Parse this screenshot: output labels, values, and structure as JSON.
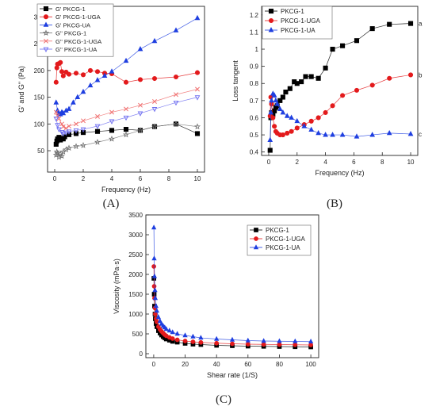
{
  "panels": [
    "(A)",
    "(B)",
    "(C)"
  ],
  "chart_data": [
    {
      "type": "line",
      "xlabel": "Frequency (Hz)",
      "ylabel": "G' and G'' (Pa)",
      "xlim": [
        -0.5,
        10.5
      ],
      "ylim": [
        10,
        320
      ],
      "xticks": [
        0,
        2,
        4,
        6,
        8,
        10
      ],
      "yticks": [
        50,
        100,
        150,
        200,
        250,
        300
      ],
      "legend_position": "top-left",
      "series": [
        {
          "name": "G' PKCG-1",
          "color": "#000000",
          "marker": "square",
          "filled": true,
          "x": [
            0.1,
            0.15,
            0.2,
            0.3,
            0.4,
            0.5,
            0.6,
            0.7,
            1.0,
            1.5,
            2.0,
            3.0,
            4.0,
            5.0,
            6.0,
            7.0,
            8.5,
            10.0
          ],
          "y": [
            62,
            68,
            72,
            75,
            70,
            73,
            72,
            76,
            80,
            82,
            84,
            86,
            88,
            90,
            88,
            95,
            100,
            82
          ]
        },
        {
          "name": "G' PKCG-1-UGA",
          "color": "#e31a1c",
          "marker": "circle",
          "filled": true,
          "x": [
            0.1,
            0.15,
            0.2,
            0.3,
            0.4,
            0.5,
            0.6,
            0.8,
            1.0,
            1.5,
            2.0,
            2.5,
            3.0,
            3.5,
            4.0,
            5.0,
            6.0,
            7.0,
            8.5,
            10.0
          ],
          "y": [
            178,
            205,
            212,
            213,
            215,
            198,
            190,
            197,
            193,
            195,
            192,
            200,
            198,
            195,
            194,
            178,
            183,
            185,
            188,
            196
          ]
        },
        {
          "name": "G' PKCG-UA",
          "color": "#1f3fe0",
          "marker": "triangle-up",
          "filled": true,
          "x": [
            0.1,
            0.2,
            0.3,
            0.4,
            0.5,
            0.6,
            0.8,
            1.0,
            1.3,
            1.6,
            2.0,
            2.5,
            3.0,
            3.5,
            4.0,
            5.0,
            6.0,
            7.0,
            8.5,
            10.0
          ],
          "y": [
            140,
            125,
            120,
            118,
            122,
            120,
            125,
            128,
            140,
            150,
            160,
            172,
            182,
            190,
            198,
            218,
            240,
            255,
            275,
            298
          ]
        },
        {
          "name": "G'' PKCG-1",
          "color": "#6e6e6e",
          "marker": "star",
          "filled": false,
          "x": [
            0.1,
            0.15,
            0.2,
            0.3,
            0.4,
            0.5,
            0.6,
            0.8,
            1.0,
            1.5,
            2.0,
            3.0,
            4.0,
            5.0,
            6.0,
            7.0,
            8.5,
            10.0
          ],
          "y": [
            42,
            48,
            45,
            38,
            44,
            40,
            48,
            52,
            55,
            58,
            60,
            66,
            72,
            80,
            88,
            95,
            100,
            95
          ]
        },
        {
          "name": "G'' PKCG-1-UGA",
          "color": "#f07070",
          "marker": "x",
          "filled": false,
          "x": [
            0.1,
            0.2,
            0.3,
            0.5,
            0.6,
            0.8,
            1.0,
            1.5,
            2.0,
            3.0,
            4.0,
            5.0,
            6.0,
            7.0,
            8.5,
            10.0
          ],
          "y": [
            122,
            115,
            110,
            100,
            95,
            92,
            96,
            100,
            106,
            114,
            122,
            128,
            135,
            142,
            155,
            165
          ]
        },
        {
          "name": "G'' PKCG-1-UA",
          "color": "#6b6bf0",
          "marker": "triangle-down",
          "filled": false,
          "x": [
            0.1,
            0.2,
            0.3,
            0.5,
            0.6,
            0.8,
            1.0,
            1.5,
            2.0,
            3.0,
            4.0,
            5.0,
            6.0,
            7.0,
            8.5,
            10.0
          ],
          "y": [
            110,
            98,
            90,
            85,
            82,
            84,
            86,
            88,
            90,
            96,
            105,
            112,
            120,
            128,
            140,
            150
          ]
        }
      ]
    },
    {
      "type": "line",
      "xlabel": "Frequency (Hz)",
      "ylabel": "Loss tangent",
      "xlim": [
        -0.5,
        10.5
      ],
      "ylim": [
        0.38,
        1.25
      ],
      "xticks": [
        0,
        2,
        4,
        6,
        8,
        10
      ],
      "yticks": [
        0.4,
        0.5,
        0.6,
        0.7,
        0.8,
        0.9,
        1.0,
        1.1,
        1.2
      ],
      "legend_position": "top-left",
      "annotations": [
        "a",
        "b",
        "c"
      ],
      "series": [
        {
          "name": "PKCG-1",
          "color": "#000000",
          "marker": "square",
          "filled": true,
          "end_label": "a",
          "x": [
            0.1,
            0.15,
            0.2,
            0.3,
            0.4,
            0.5,
            0.6,
            0.8,
            1.0,
            1.2,
            1.5,
            1.8,
            2.0,
            2.3,
            2.6,
            3.0,
            3.5,
            4.0,
            4.5,
            5.2,
            6.2,
            7.3,
            8.5,
            10.0
          ],
          "y": [
            0.41,
            0.6,
            0.63,
            0.62,
            0.64,
            0.66,
            0.67,
            0.7,
            0.72,
            0.75,
            0.77,
            0.81,
            0.8,
            0.81,
            0.84,
            0.84,
            0.83,
            0.89,
            1.0,
            1.02,
            1.05,
            1.12,
            1.145,
            1.15
          ]
        },
        {
          "name": "PKCG-1-UGA",
          "color": "#e31a1c",
          "marker": "circle",
          "filled": true,
          "end_label": "b",
          "x": [
            0.1,
            0.15,
            0.2,
            0.3,
            0.4,
            0.5,
            0.6,
            0.8,
            1.0,
            1.3,
            1.6,
            2.0,
            2.5,
            3.0,
            3.5,
            4.0,
            4.5,
            5.2,
            6.2,
            7.3,
            8.5,
            10.0
          ],
          "y": [
            0.61,
            0.72,
            0.68,
            0.6,
            0.55,
            0.52,
            0.51,
            0.5,
            0.5,
            0.51,
            0.52,
            0.54,
            0.56,
            0.58,
            0.6,
            0.63,
            0.67,
            0.73,
            0.76,
            0.79,
            0.83,
            0.85
          ]
        },
        {
          "name": "PKCG-1-UA",
          "color": "#1f3fe0",
          "marker": "triangle-up",
          "filled": true,
          "end_label": "c",
          "x": [
            0.1,
            0.15,
            0.2,
            0.3,
            0.4,
            0.5,
            0.6,
            0.8,
            1.0,
            1.3,
            1.6,
            2.0,
            2.5,
            3.0,
            3.5,
            4.0,
            4.5,
            5.2,
            6.2,
            7.3,
            8.5,
            10.0
          ],
          "y": [
            0.47,
            0.63,
            0.7,
            0.74,
            0.73,
            0.7,
            0.68,
            0.65,
            0.63,
            0.61,
            0.6,
            0.58,
            0.55,
            0.53,
            0.51,
            0.5,
            0.5,
            0.5,
            0.49,
            0.5,
            0.51,
            0.505
          ]
        }
      ]
    },
    {
      "type": "line",
      "xlabel": "Shear rate (1/S)",
      "ylabel": "Viscosity (mPa·s)",
      "xlim": [
        -5,
        105
      ],
      "ylim": [
        -100,
        3500
      ],
      "xticks": [
        0,
        20,
        40,
        60,
        80,
        100
      ],
      "yticks": [
        0,
        500,
        1000,
        1500,
        2000,
        2500,
        3000,
        3500
      ],
      "legend_position": "top-right",
      "series": [
        {
          "name": "PKCG-1",
          "color": "#000000",
          "marker": "square",
          "filled": true,
          "x": [
            0.1,
            0.3,
            0.5,
            0.8,
            1.0,
            1.5,
            2.0,
            3.0,
            4.0,
            5.0,
            6.0,
            7.0,
            8.0,
            10.0,
            12.0,
            15.0,
            20.0,
            25.0,
            30.0,
            40.0,
            50.0,
            60.0,
            70.0,
            80.0,
            90.0,
            100.0
          ],
          "y": [
            1900,
            1500,
            1200,
            1000,
            880,
            760,
            680,
            580,
            520,
            470,
            430,
            400,
            370,
            340,
            310,
            290,
            260,
            240,
            230,
            210,
            200,
            190,
            185,
            180,
            175,
            170
          ]
        },
        {
          "name": "PKCG-1-UGA",
          "color": "#e31a1c",
          "marker": "circle",
          "filled": true,
          "x": [
            0.1,
            0.3,
            0.5,
            0.8,
            1.0,
            1.5,
            2.0,
            3.0,
            4.0,
            5.0,
            6.0,
            7.0,
            8.0,
            10.0,
            12.0,
            15.0,
            20.0,
            25.0,
            30.0,
            40.0,
            50.0,
            60.0,
            70.0,
            80.0,
            90.0,
            100.0
          ],
          "y": [
            2200,
            1700,
            1400,
            1150,
            1000,
            880,
            800,
            680,
            610,
            560,
            520,
            480,
            450,
            410,
            380,
            350,
            320,
            300,
            285,
            265,
            250,
            240,
            235,
            230,
            225,
            220
          ]
        },
        {
          "name": "PKCG-1-UA",
          "color": "#1f3fe0",
          "marker": "triangle-up",
          "filled": true,
          "x": [
            0.1,
            0.3,
            0.5,
            0.8,
            1.0,
            1.5,
            2.0,
            3.0,
            4.0,
            5.0,
            6.0,
            7.0,
            8.0,
            10.0,
            12.0,
            15.0,
            20.0,
            25.0,
            30.0,
            40.0,
            50.0,
            60.0,
            70.0,
            80.0,
            90.0,
            100.0
          ],
          "y": [
            3180,
            2400,
            1950,
            1600,
            1400,
            1200,
            1080,
            920,
            820,
            750,
            700,
            660,
            620,
            580,
            540,
            500,
            460,
            430,
            400,
            370,
            350,
            330,
            320,
            315,
            310,
            305
          ]
        }
      ]
    }
  ]
}
